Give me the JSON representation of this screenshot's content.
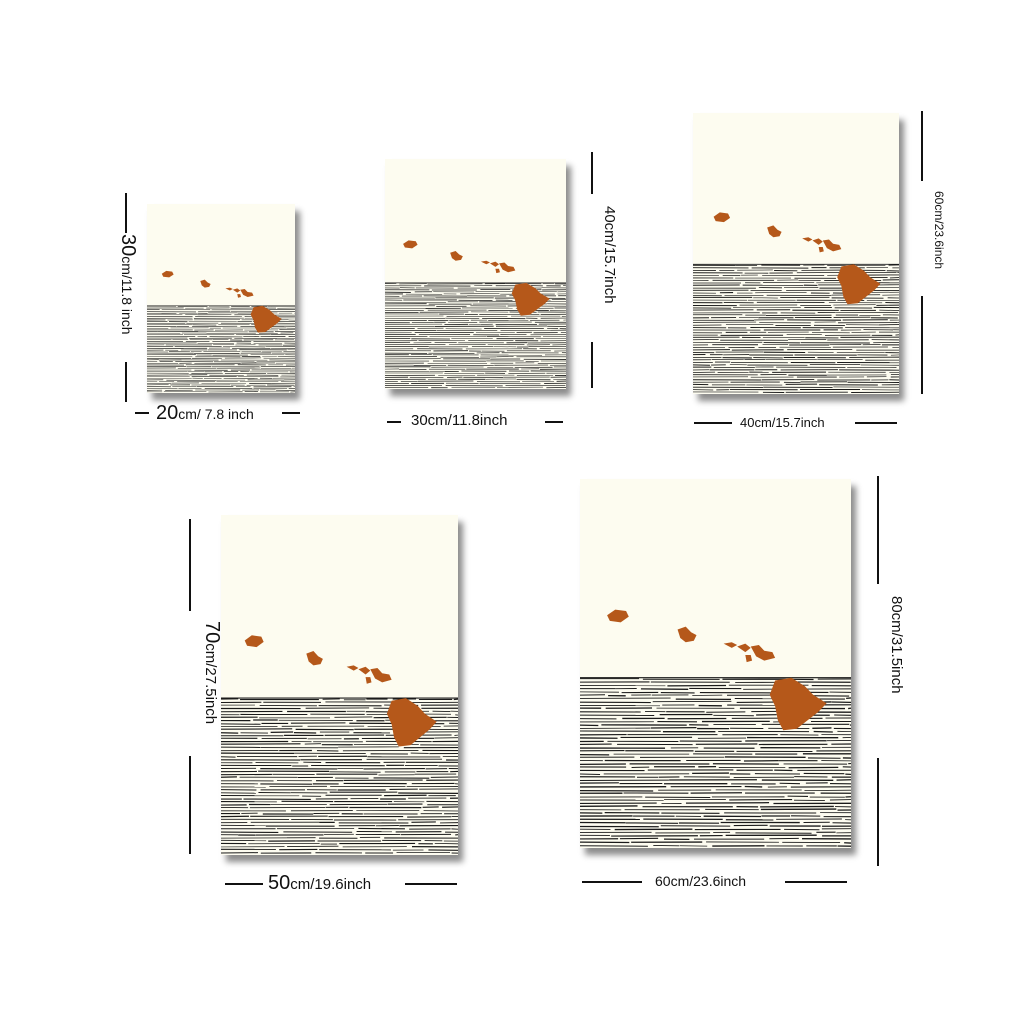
{
  "colors": {
    "paper": "#fdfcf0",
    "island": "#b5581a",
    "lines": "#1a1a1a"
  },
  "sizes": [
    {
      "width_num": "20",
      "width_rest": "cm/ 7.8 inch",
      "height_num": "30",
      "height_rest": "cm/11.8 inch"
    },
    {
      "width_num": "",
      "width_rest": "30cm/11.8inch",
      "height_num": "",
      "height_rest": "40cm/15.7inch"
    },
    {
      "width_num": "",
      "width_rest": "40cm/15.7inch",
      "height_num": "",
      "height_rest": "60cm/23.6inch"
    },
    {
      "width_num": "50",
      "width_rest": "cm/19.6inch",
      "height_num": "70",
      "height_rest": "cm/27.5inch"
    },
    {
      "width_num": "",
      "width_rest": "60cm/23.6inch",
      "height_num": "",
      "height_rest": "80cm/31.5inch"
    }
  ]
}
